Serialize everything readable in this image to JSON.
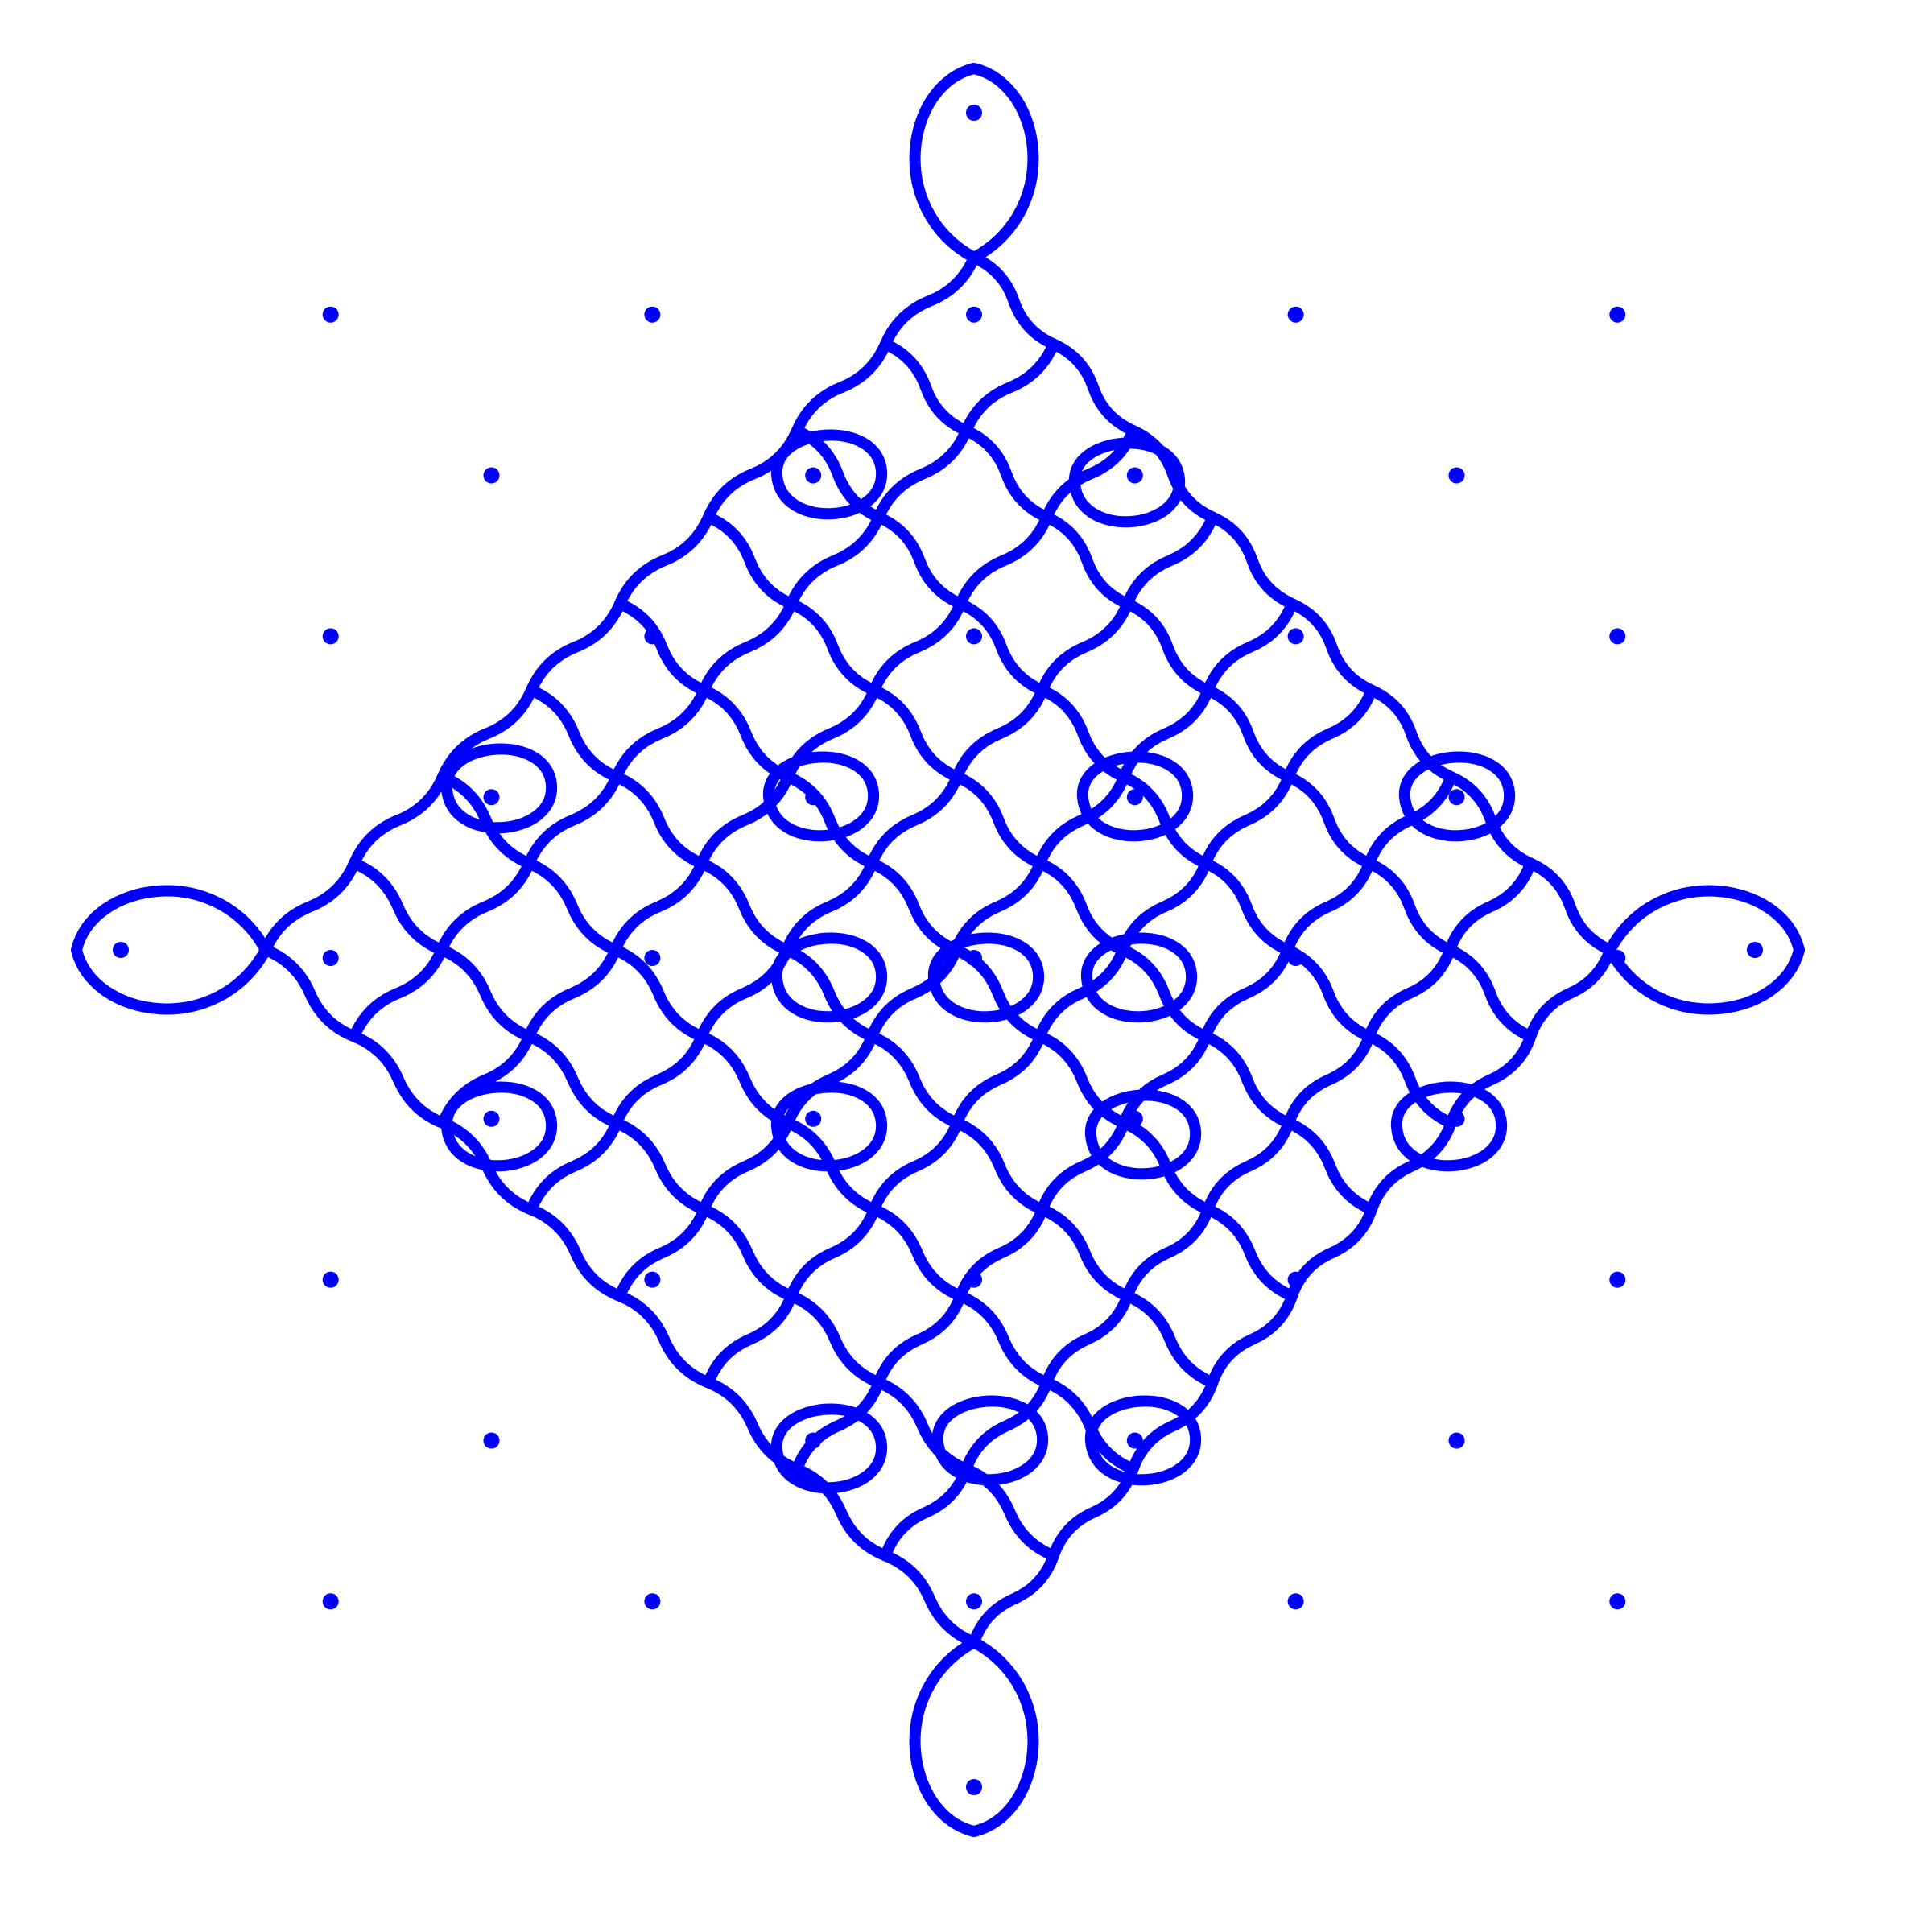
{
  "artwork": {
    "kind": "kolam line drawing",
    "stroke_color": "#0000FF",
    "dot_color": "#0000FF",
    "background_color": "#FFFFFF"
  }
}
